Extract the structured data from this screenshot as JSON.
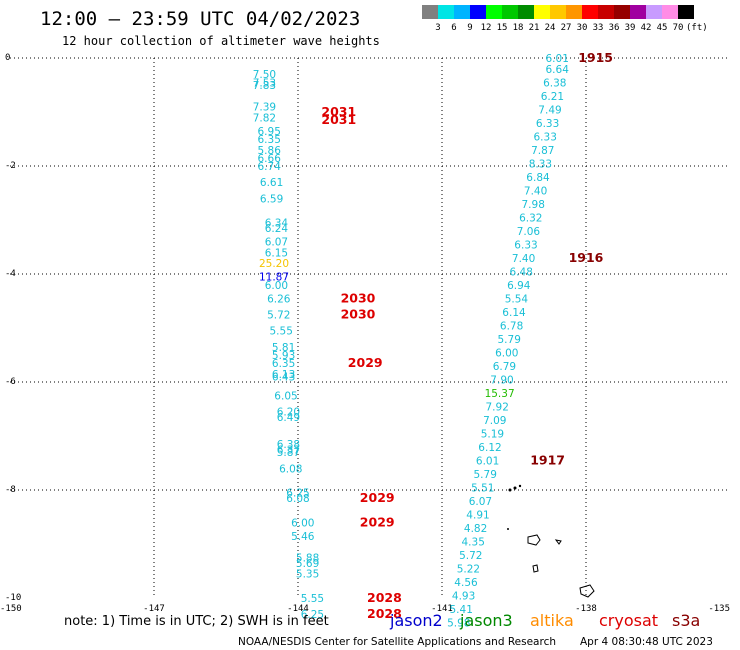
{
  "title": "12:00 – 23:59 UTC 04/02/2023",
  "subtitle": "12 hour collection of altimeter wave heights",
  "color_scale": {
    "labels": [
      "3",
      "6",
      "9",
      "12",
      "15",
      "18",
      "21",
      "24",
      "27",
      "30",
      "33",
      "36",
      "39",
      "42",
      "45",
      "70"
    ],
    "unit": "(ft)",
    "colors": [
      "#808080",
      "#00e5e5",
      "#00b4ff",
      "#0000ff",
      "#00ff00",
      "#00c800",
      "#008c00",
      "#ffff00",
      "#ffc800",
      "#ff9600",
      "#ff0000",
      "#c80000",
      "#960000",
      "#a000a0",
      "#c89bff",
      "#ff8ce6",
      "#000000"
    ]
  },
  "note": "note: 1) Time is in UTC; 2) SWH is in feet",
  "satellites": [
    {
      "name": "jason2",
      "color": "#0000cc"
    },
    {
      "name": "jason3",
      "color": "#008800"
    },
    {
      "name": "altika",
      "color": "#ff8c00"
    },
    {
      "name": "cryosat",
      "color": "#dd0000"
    },
    {
      "name": "s3a",
      "color": "#880000"
    }
  ],
  "credit": "NOAA/NESDIS Center for Satellite Applications and Research",
  "timestamp": "Apr  4 08:30:48 UTC 2023",
  "chart_data": {
    "type": "scatter",
    "title": "12:00 – 23:59 UTC 04/02/2023",
    "subtitle": "12 hour collection of altimeter wave heights",
    "xlim": [
      -150,
      -135
    ],
    "ylim": [
      -10,
      0
    ],
    "x_ticks": [
      -150,
      -147,
      -144,
      -141,
      -138,
      -135
    ],
    "y_ticks": [
      0,
      -2,
      -4,
      -6,
      -8,
      -10
    ],
    "x_tick_labels": [
      "-150",
      "-147",
      "-144",
      "-141",
      "-138",
      "-135"
    ],
    "y_tick_labels": [
      "0",
      "-2",
      "-4",
      "-6",
      "-8",
      "-10"
    ],
    "grid": true,
    "track_west": [
      {
        "lon": -144.7,
        "lat": -0.3,
        "v": "7.50",
        "c": "#19bfd6"
      },
      {
        "lon": -144.7,
        "lat": -0.45,
        "v": "7.53",
        "c": "#19bfd6"
      },
      {
        "lon": -144.7,
        "lat": -0.5,
        "v": "7.83",
        "c": "#19bfd6"
      },
      {
        "lon": -144.7,
        "lat": -0.9,
        "v": "7.39",
        "c": "#19bfd6"
      },
      {
        "lon": -144.7,
        "lat": -1.1,
        "v": "7.82",
        "c": "#19bfd6"
      },
      {
        "lon": -144.6,
        "lat": -1.35,
        "v": "6.95",
        "c": "#19bfd6"
      },
      {
        "lon": -144.6,
        "lat": -1.5,
        "v": "6.35",
        "c": "#19bfd6"
      },
      {
        "lon": -144.6,
        "lat": -1.7,
        "v": "5.86",
        "c": "#19bfd6"
      },
      {
        "lon": -144.6,
        "lat": -1.85,
        "v": "6.66",
        "c": "#19bfd6"
      },
      {
        "lon": -144.6,
        "lat": -2.0,
        "v": "6.74",
        "c": "#19bfd6"
      },
      {
        "lon": -144.55,
        "lat": -2.3,
        "v": "6.61",
        "c": "#19bfd6"
      },
      {
        "lon": -144.55,
        "lat": -2.6,
        "v": "6.59",
        "c": "#19bfd6"
      },
      {
        "lon": -144.45,
        "lat": -3.05,
        "v": "6.34",
        "c": "#19bfd6"
      },
      {
        "lon": -144.45,
        "lat": -3.15,
        "v": "6.24",
        "c": "#19bfd6"
      },
      {
        "lon": -144.45,
        "lat": -3.4,
        "v": "6.07",
        "c": "#19bfd6"
      },
      {
        "lon": -144.45,
        "lat": -3.6,
        "v": "6.15",
        "c": "#19bfd6"
      },
      {
        "lon": -144.5,
        "lat": -3.8,
        "v": "25.20",
        "c": "#f5c400"
      },
      {
        "lon": -144.5,
        "lat": -4.05,
        "v": "11.87",
        "c": "#0000ee"
      },
      {
        "lon": -144.45,
        "lat": -4.2,
        "v": "6.00",
        "c": "#19bfd6"
      },
      {
        "lon": -144.4,
        "lat": -4.45,
        "v": "6.26",
        "c": "#19bfd6"
      },
      {
        "lon": -144.4,
        "lat": -4.75,
        "v": "5.72",
        "c": "#19bfd6"
      },
      {
        "lon": -144.35,
        "lat": -5.05,
        "v": "5.55",
        "c": "#19bfd6"
      },
      {
        "lon": -144.3,
        "lat": -5.35,
        "v": "5.81",
        "c": "#19bfd6"
      },
      {
        "lon": -144.3,
        "lat": -5.5,
        "v": "5.93",
        "c": "#19bfd6"
      },
      {
        "lon": -144.3,
        "lat": -5.65,
        "v": "6.35",
        "c": "#19bfd6"
      },
      {
        "lon": -144.3,
        "lat": -5.85,
        "v": "6.13",
        "c": "#19bfd6"
      },
      {
        "lon": -144.3,
        "lat": -5.9,
        "v": "6.43",
        "c": "#19bfd6"
      },
      {
        "lon": -144.25,
        "lat": -6.25,
        "v": "6.05",
        "c": "#19bfd6"
      },
      {
        "lon": -144.2,
        "lat": -6.55,
        "v": "6.20",
        "c": "#19bfd6"
      },
      {
        "lon": -144.2,
        "lat": -6.65,
        "v": "6.49",
        "c": "#19bfd6"
      },
      {
        "lon": -144.2,
        "lat": -7.15,
        "v": "6.38",
        "c": "#19bfd6"
      },
      {
        "lon": -144.2,
        "lat": -7.25,
        "v": "6.37",
        "c": "#19bfd6"
      },
      {
        "lon": -144.2,
        "lat": -7.3,
        "v": "5.87",
        "c": "#19bfd6"
      },
      {
        "lon": -144.15,
        "lat": -7.6,
        "v": "6.08",
        "c": "#19bfd6"
      },
      {
        "lon": -144.0,
        "lat": -8.05,
        "v": "6.25",
        "c": "#19bfd6"
      },
      {
        "lon": -144.0,
        "lat": -8.15,
        "v": "6.08",
        "c": "#19bfd6"
      },
      {
        "lon": -143.9,
        "lat": -8.6,
        "v": "6.00",
        "c": "#19bfd6"
      },
      {
        "lon": -143.9,
        "lat": -8.85,
        "v": "5.46",
        "c": "#19bfd6"
      },
      {
        "lon": -143.8,
        "lat": -9.25,
        "v": "5.88",
        "c": "#19bfd6"
      },
      {
        "lon": -143.8,
        "lat": -9.35,
        "v": "5.69",
        "c": "#19bfd6"
      },
      {
        "lon": -143.8,
        "lat": -9.55,
        "v": "5.35",
        "c": "#19bfd6"
      },
      {
        "lon": -143.7,
        "lat": -10.0,
        "v": "5.55",
        "c": "#19bfd6"
      },
      {
        "lon": -143.7,
        "lat": -10.3,
        "v": "6.25",
        "c": "#19bfd6"
      }
    ],
    "track_east": [
      {
        "lon": -138.6,
        "lat": 0.0,
        "v": "6.01",
        "c": "#19bfd6"
      },
      {
        "lon": -138.6,
        "lat": -0.2,
        "v": "6.64",
        "c": "#19bfd6"
      },
      {
        "lon": -138.65,
        "lat": -0.45,
        "v": "6.38",
        "c": "#19bfd6"
      },
      {
        "lon": -138.7,
        "lat": -0.7,
        "v": "6.21",
        "c": "#19bfd6"
      },
      {
        "lon": -138.75,
        "lat": -0.95,
        "v": "7.49",
        "c": "#19bfd6"
      },
      {
        "lon": -138.8,
        "lat": -1.2,
        "v": "6.33",
        "c": "#19bfd6"
      },
      {
        "lon": -138.85,
        "lat": -1.45,
        "v": "6.33",
        "c": "#19bfd6"
      },
      {
        "lon": -138.9,
        "lat": -1.7,
        "v": "7.87",
        "c": "#19bfd6"
      },
      {
        "lon": -138.95,
        "lat": -1.95,
        "v": "8.33",
        "c": "#19bfd6"
      },
      {
        "lon": -139.0,
        "lat": -2.2,
        "v": "6.84",
        "c": "#19bfd6"
      },
      {
        "lon": -139.05,
        "lat": -2.45,
        "v": "7.40",
        "c": "#19bfd6"
      },
      {
        "lon": -139.1,
        "lat": -2.7,
        "v": "7.98",
        "c": "#19bfd6"
      },
      {
        "lon": -139.15,
        "lat": -2.95,
        "v": "6.32",
        "c": "#19bfd6"
      },
      {
        "lon": -139.2,
        "lat": -3.2,
        "v": "7.06",
        "c": "#19bfd6"
      },
      {
        "lon": -139.25,
        "lat": -3.45,
        "v": "6.33",
        "c": "#19bfd6"
      },
      {
        "lon": -139.3,
        "lat": -3.7,
        "v": "7.40",
        "c": "#19bfd6"
      },
      {
        "lon": -139.35,
        "lat": -3.95,
        "v": "6.48",
        "c": "#19bfd6"
      },
      {
        "lon": -139.4,
        "lat": -4.2,
        "v": "6.94",
        "c": "#19bfd6"
      },
      {
        "lon": -139.45,
        "lat": -4.45,
        "v": "5.54",
        "c": "#19bfd6"
      },
      {
        "lon": -139.5,
        "lat": -4.7,
        "v": "6.14",
        "c": "#19bfd6"
      },
      {
        "lon": -139.55,
        "lat": -4.95,
        "v": "6.78",
        "c": "#19bfd6"
      },
      {
        "lon": -139.6,
        "lat": -5.2,
        "v": "5.79",
        "c": "#19bfd6"
      },
      {
        "lon": -139.65,
        "lat": -5.45,
        "v": "6.00",
        "c": "#19bfd6"
      },
      {
        "lon": -139.7,
        "lat": -5.7,
        "v": "6.79",
        "c": "#19bfd6"
      },
      {
        "lon": -139.75,
        "lat": -5.95,
        "v": "7.90",
        "c": "#19bfd6"
      },
      {
        "lon": -139.8,
        "lat": -6.2,
        "v": "15.37",
        "c": "#22bb00"
      },
      {
        "lon": -139.85,
        "lat": -6.45,
        "v": "7.92",
        "c": "#19bfd6"
      },
      {
        "lon": -139.9,
        "lat": -6.7,
        "v": "7.09",
        "c": "#19bfd6"
      },
      {
        "lon": -139.95,
        "lat": -6.95,
        "v": "5.19",
        "c": "#19bfd6"
      },
      {
        "lon": -140.0,
        "lat": -7.2,
        "v": "6.12",
        "c": "#19bfd6"
      },
      {
        "lon": -140.05,
        "lat": -7.45,
        "v": "6.01",
        "c": "#19bfd6"
      },
      {
        "lon": -140.1,
        "lat": -7.7,
        "v": "5.79",
        "c": "#19bfd6"
      },
      {
        "lon": -140.15,
        "lat": -7.95,
        "v": "5.51",
        "c": "#19bfd6"
      },
      {
        "lon": -140.2,
        "lat": -8.2,
        "v": "6.07",
        "c": "#19bfd6"
      },
      {
        "lon": -140.25,
        "lat": -8.45,
        "v": "4.91",
        "c": "#19bfd6"
      },
      {
        "lon": -140.3,
        "lat": -8.7,
        "v": "4.82",
        "c": "#19bfd6"
      },
      {
        "lon": -140.35,
        "lat": -8.95,
        "v": "4.35",
        "c": "#19bfd6"
      },
      {
        "lon": -140.4,
        "lat": -9.2,
        "v": "5.72",
        "c": "#19bfd6"
      },
      {
        "lon": -140.45,
        "lat": -9.45,
        "v": "5.22",
        "c": "#19bfd6"
      },
      {
        "lon": -140.5,
        "lat": -9.7,
        "v": "4.56",
        "c": "#19bfd6"
      },
      {
        "lon": -140.55,
        "lat": -9.95,
        "v": "4.93",
        "c": "#19bfd6"
      },
      {
        "lon": -140.6,
        "lat": -10.2,
        "v": "5.41",
        "c": "#19bfd6"
      },
      {
        "lon": -140.65,
        "lat": -10.45,
        "v": "5.98",
        "c": "#19bfd6"
      }
    ],
    "time_labels": [
      {
        "lon": -143.15,
        "lat": -1.0,
        "t": "2031",
        "c": "#dd0000"
      },
      {
        "lon": -143.15,
        "lat": -1.15,
        "t": "2031",
        "c": "#dd0000"
      },
      {
        "lon": -142.75,
        "lat": -4.45,
        "t": "2030",
        "c": "#dd0000"
      },
      {
        "lon": -142.75,
        "lat": -4.75,
        "t": "2030",
        "c": "#dd0000"
      },
      {
        "lon": -142.6,
        "lat": -5.65,
        "t": "2029",
        "c": "#dd0000"
      },
      {
        "lon": -142.35,
        "lat": -8.15,
        "t": "2029",
        "c": "#dd0000"
      },
      {
        "lon": -142.35,
        "lat": -8.6,
        "t": "2029",
        "c": "#dd0000"
      },
      {
        "lon": -142.2,
        "lat": -10.0,
        "t": "2028",
        "c": "#dd0000"
      },
      {
        "lon": -142.2,
        "lat": -10.3,
        "t": "2028",
        "c": "#dd0000"
      },
      {
        "lon": -137.8,
        "lat": 0.0,
        "t": "1915",
        "c": "#880000"
      },
      {
        "lon": -138.0,
        "lat": -3.7,
        "t": "1916",
        "c": "#880000"
      },
      {
        "lon": -138.8,
        "lat": -7.45,
        "t": "1917",
        "c": "#880000"
      }
    ]
  }
}
